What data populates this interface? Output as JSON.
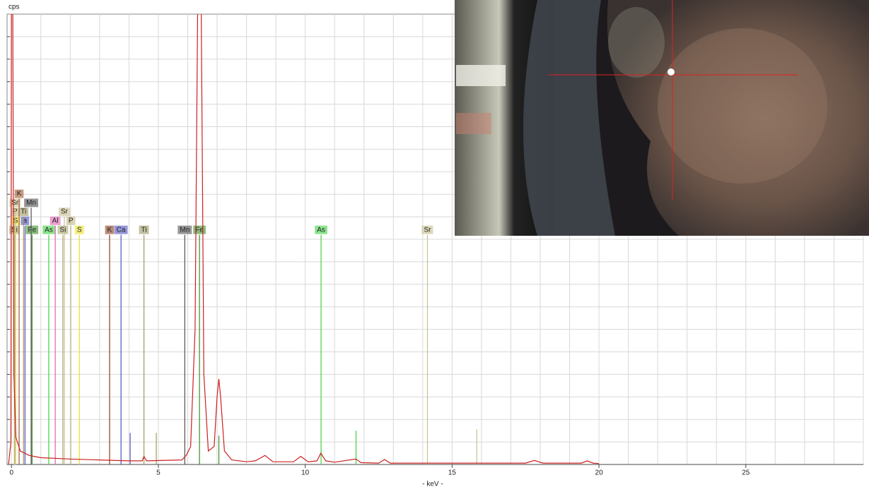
{
  "chart_data": {
    "type": "line",
    "y_label": "cps",
    "x_label": "- keV -",
    "xlim": [
      -0.15,
      29
    ],
    "ylim": [
      0,
      100
    ],
    "xticks": [
      0,
      5,
      10,
      15,
      20,
      25
    ],
    "grid": true,
    "grid_step_x": 1,
    "grid_step_y": 5,
    "series": [
      {
        "name": "spectrum",
        "color": "#cc2020",
        "x": [
          -0.1,
          -0.02,
          0,
          0.04,
          0.08,
          0.15,
          0.3,
          0.6,
          1,
          2,
          3,
          4,
          4.45,
          4.51,
          4.6,
          5.8,
          5.95,
          6.1,
          6.25,
          6.35,
          6.45,
          6.55,
          6.7,
          6.9,
          7.0,
          7.06,
          7.12,
          7.25,
          7.5,
          8.0,
          8.3,
          8.63,
          8.9,
          9.6,
          9.85,
          10.1,
          10.4,
          10.53,
          10.7,
          11.0,
          11.72,
          11.9,
          12.5,
          12.7,
          12.9,
          14,
          16,
          17.5,
          17.8,
          18.1,
          19.4,
          19.6,
          19.8,
          20
        ],
        "values": [
          0,
          5,
          110,
          110,
          20,
          6,
          3,
          2,
          1.5,
          1.2,
          1,
          0.8,
          0.8,
          1.8,
          0.8,
          1,
          2,
          4,
          30,
          110,
          110,
          20,
          3,
          4,
          15,
          19,
          15,
          3,
          1,
          0.6,
          0.8,
          2,
          0.6,
          0.6,
          1.8,
          0.6,
          0.8,
          2.5,
          0.8,
          0.5,
          1.2,
          0.4,
          0.3,
          1.1,
          0.3,
          0.3,
          0.3,
          0.3,
          0.9,
          0.3,
          0.3,
          0.8,
          0.3,
          0.2
        ]
      }
    ],
    "markers": [
      {
        "label": "Si",
        "energy": 0.1,
        "height": 51,
        "color": "#a8a870"
      },
      {
        "label": "Fe",
        "energy": 0.7,
        "height": 51,
        "color": "#3c8c28"
      },
      {
        "label": "As",
        "energy": 1.27,
        "height": 51,
        "color": "#40d040"
      },
      {
        "label": "Si",
        "energy": 1.75,
        "height": 51,
        "color": "#a8a870"
      },
      {
        "label": "S",
        "energy": 2.31,
        "height": 51,
        "color": "#e8e020"
      },
      {
        "label": "K",
        "energy": 3.34,
        "height": 51,
        "color": "#8c3c1c"
      },
      {
        "label": "Ca",
        "energy": 3.73,
        "height": 51,
        "color": "#5050c0"
      },
      {
        "label": "Ti",
        "energy": 4.51,
        "height": 51,
        "color": "#a09860"
      },
      {
        "label": "Mn",
        "energy": 5.9,
        "height": 51,
        "color": "#505050"
      },
      {
        "label": "Fe",
        "energy": 6.4,
        "height": 51,
        "color": "#3c8c28"
      },
      {
        "label": "As",
        "energy": 10.54,
        "height": 51,
        "color": "#40d040"
      },
      {
        "label": "Sr",
        "energy": 14.16,
        "height": 51,
        "color": "#c8c090"
      },
      {
        "label": "S",
        "energy": 0.14,
        "height": 53,
        "color": "#e8e020"
      },
      {
        "label": "a",
        "energy": 0.46,
        "height": 53,
        "color": "#5050c0"
      },
      {
        "label": "Al",
        "energy": 1.49,
        "height": 53,
        "color": "#e060b0"
      },
      {
        "label": "P",
        "energy": 2.02,
        "height": 53,
        "color": "#c0b880"
      },
      {
        "label": "P",
        "energy": 0.12,
        "height": 55,
        "color": "#c0b880"
      },
      {
        "label": "Ti",
        "energy": 0.41,
        "height": 55,
        "color": "#a09860"
      },
      {
        "label": "Sr",
        "energy": 1.8,
        "height": 55,
        "color": "#c8c090"
      },
      {
        "label": "Sr",
        "energy": 0.12,
        "height": 57,
        "color": "#c8c090"
      },
      {
        "label": "Mn",
        "energy": 0.67,
        "height": 57,
        "color": "#505050"
      },
      {
        "label": "K",
        "energy": 0.26,
        "height": 59,
        "color": "#a05a30"
      },
      {
        "label": null,
        "energy": 11.73,
        "height": 7.5,
        "color": "#40d040"
      },
      {
        "label": null,
        "energy": 15.84,
        "height": 7.8,
        "color": "#c8c090"
      },
      {
        "label": null,
        "energy": 7.06,
        "height": 6.4,
        "color": "#3c8c28"
      },
      {
        "label": null,
        "energy": 4.93,
        "height": 7,
        "color": "#a09860"
      },
      {
        "label": null,
        "energy": 4.04,
        "height": 7,
        "color": "#5050c0"
      }
    ]
  }
}
